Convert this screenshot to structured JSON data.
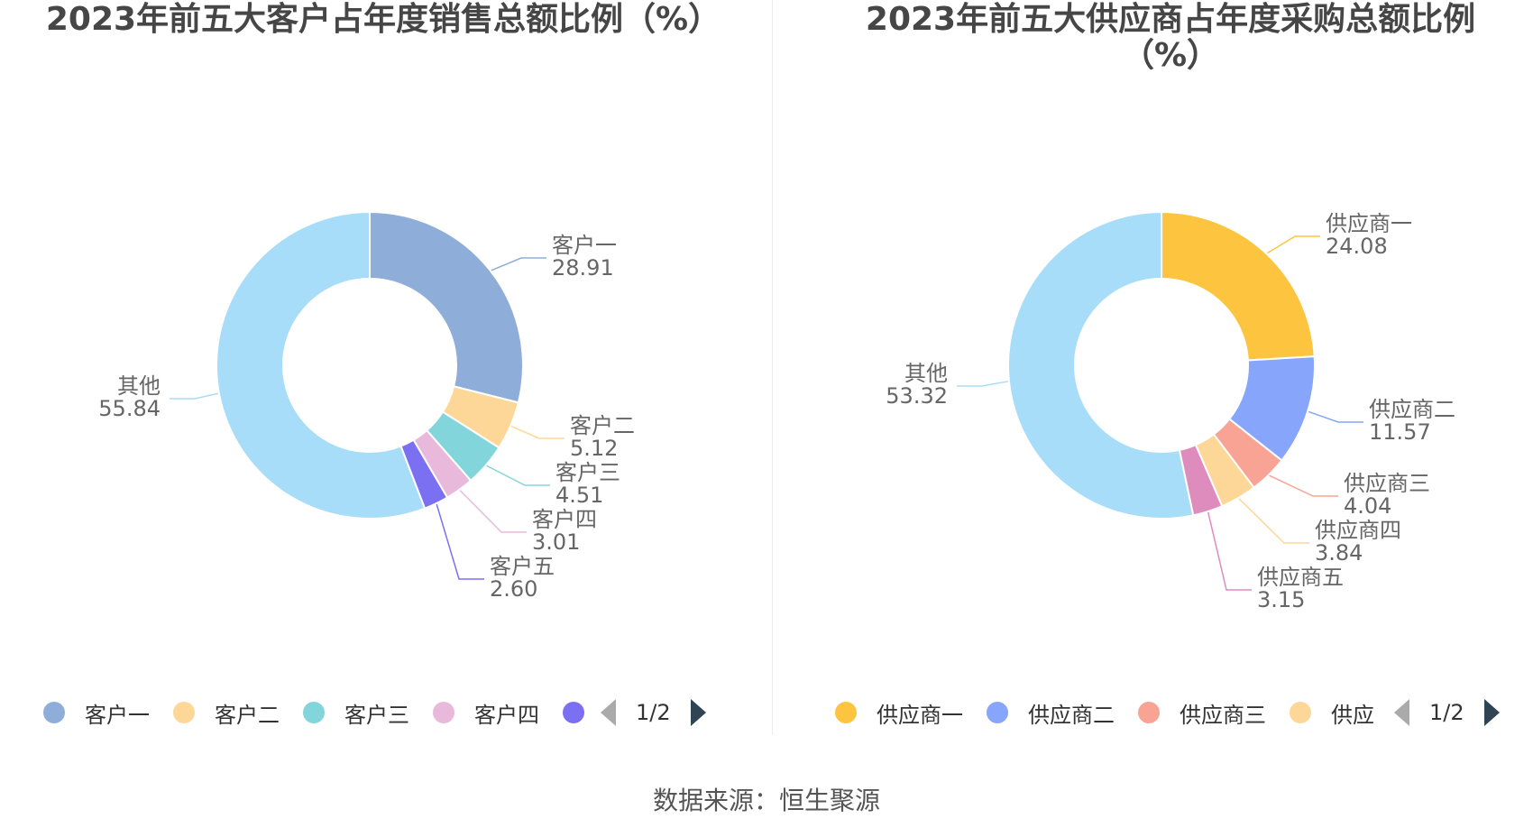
{
  "charts": [
    {
      "title": "2023年前五大客户占年度销售总额比例（%）",
      "legend_page": "1/2",
      "legend_visible": [
        "客户一",
        "客户二",
        "客户三",
        "客户四"
      ],
      "chart_data": {
        "type": "pie",
        "title": "2023年前五大客户占年度销售总额比例（%）",
        "donut": true,
        "labels": [
          "客户一",
          "客户二",
          "客户三",
          "客户四",
          "客户五",
          "其他"
        ],
        "values": [
          28.91,
          5.12,
          4.51,
          3.01,
          2.6,
          55.84
        ],
        "value_labels": [
          "28.91",
          "5.12",
          "4.51",
          "3.01",
          "2.60",
          "55.84"
        ],
        "colors": [
          "#8fadd9",
          "#fdd798",
          "#82d5da",
          "#e8b9db",
          "#7b70f2",
          "#a7ddf8"
        ],
        "legend_position": "bottom"
      }
    },
    {
      "title": "2023年前五大供应商占年度采购总额比例（%）",
      "legend_page": "1/2",
      "legend_visible": [
        "供应商一",
        "供应商二",
        "供应商三",
        "供应"
      ],
      "chart_data": {
        "type": "pie",
        "title": "2023年前五大供应商占年度采购总额比例（%）",
        "donut": true,
        "labels": [
          "供应商一",
          "供应商二",
          "供应商三",
          "供应商四",
          "供应商五",
          "其他"
        ],
        "values": [
          24.08,
          11.57,
          4.04,
          3.84,
          3.15,
          53.32
        ],
        "value_labels": [
          "24.08",
          "11.57",
          "4.04",
          "3.84",
          "3.15",
          "53.32"
        ],
        "colors": [
          "#fdc53f",
          "#87a6fb",
          "#f8a394",
          "#fdd798",
          "#de8bbd",
          "#a7ddf8"
        ],
        "legend_position": "bottom"
      }
    }
  ],
  "source": "数据来源：恒生聚源"
}
